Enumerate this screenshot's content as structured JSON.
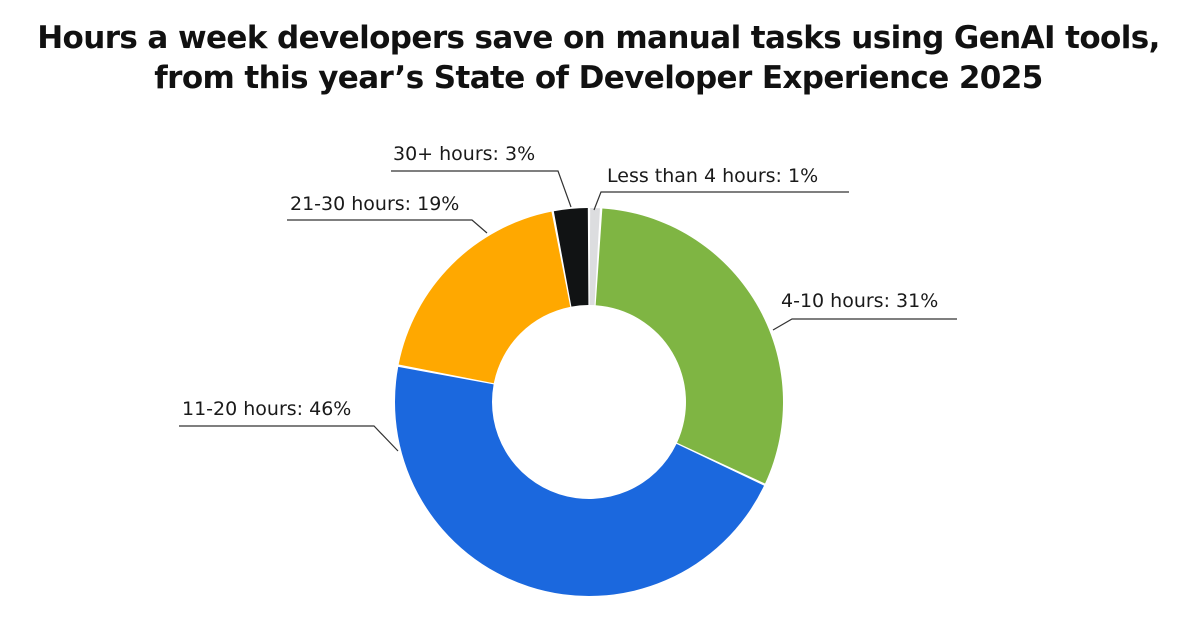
{
  "chart_data": {
    "type": "pie",
    "variant": "donut",
    "title_lines": [
      "Hours a week developers save on manual tasks using GenAI tools,",
      "from this year’s State of Developer Experience 2025"
    ],
    "categories": [
      "Less than 4 hours",
      "4-10 hours",
      "11-20 hours",
      "21-30 hours",
      "30+ hours"
    ],
    "values": [
      1,
      31,
      46,
      19,
      3
    ],
    "unit": "%",
    "labels": [
      "Less than 4 hours: 1%",
      "4-10 hours: 31%",
      "11-20 hours: 46%",
      "21-30 hours: 19%",
      "30+ hours: 3%"
    ],
    "colors": [
      "#dcdddf",
      "#7fb543",
      "#1b68de",
      "#ffa800",
      "#111314"
    ],
    "legend": "none",
    "start_angle_deg": 0,
    "direction": "clockwise"
  }
}
